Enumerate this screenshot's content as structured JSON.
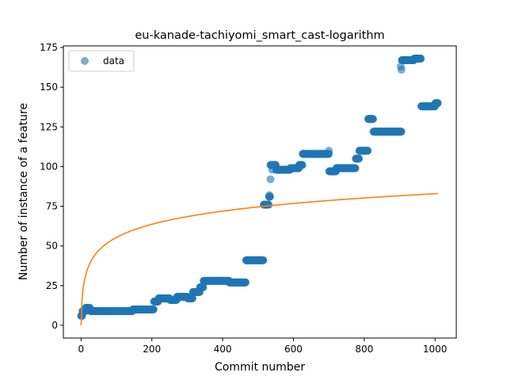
{
  "chart_data": {
    "type": "scatter",
    "title": "eu-kanade-tachiyomi_smart_cast-logarithm",
    "xlabel": "Commit number",
    "ylabel": "Number of instance of a feature",
    "xlim": [
      -50,
      1060
    ],
    "ylim": [
      -8,
      176
    ],
    "xticks": [
      0,
      200,
      400,
      600,
      800,
      1000
    ],
    "yticks": [
      0,
      25,
      50,
      75,
      100,
      125,
      150,
      175
    ],
    "legend": {
      "placement": "top-left",
      "entries": [
        "data"
      ]
    },
    "grid": false,
    "colors": {
      "data": "#1f77b4",
      "fit": "#ff7f0e"
    },
    "data_segments": [
      {
        "x_start": 0,
        "x_end": 3,
        "y": 6
      },
      {
        "x_start": 4,
        "x_end": 12,
        "y": 9
      },
      {
        "x_start": 13,
        "x_end": 25,
        "y": 11
      },
      {
        "x_start": 26,
        "x_end": 145,
        "y": 9
      },
      {
        "x_start": 146,
        "x_end": 205,
        "y": 10
      },
      {
        "x_start": 206,
        "x_end": 218,
        "y": 15
      },
      {
        "x_start": 219,
        "x_end": 250,
        "y": 17
      },
      {
        "x_start": 251,
        "x_end": 270,
        "y": 16
      },
      {
        "x_start": 271,
        "x_end": 300,
        "y": 18
      },
      {
        "x_start": 301,
        "x_end": 315,
        "y": 17
      },
      {
        "x_start": 316,
        "x_end": 335,
        "y": 21
      },
      {
        "x_start": 336,
        "x_end": 345,
        "y": 24
      },
      {
        "x_start": 346,
        "x_end": 400,
        "y": 28
      },
      {
        "x_start": 401,
        "x_end": 418,
        "y": 28
      },
      {
        "x_start": 419,
        "x_end": 465,
        "y": 27
      },
      {
        "x_start": 466,
        "x_end": 515,
        "y": 41
      },
      {
        "x_start": 516,
        "x_end": 530,
        "y": 76
      },
      {
        "x_start": 531,
        "x_end": 534,
        "y": 81
      },
      {
        "x_start": 535,
        "x_end": 550,
        "y": 101
      },
      {
        "x_start": 551,
        "x_end": 590,
        "y": 98
      },
      {
        "x_start": 591,
        "x_end": 615,
        "y": 99
      },
      {
        "x_start": 616,
        "x_end": 625,
        "y": 101
      },
      {
        "x_start": 626,
        "x_end": 700,
        "y": 108
      },
      {
        "x_start": 701,
        "x_end": 720,
        "y": 97
      },
      {
        "x_start": 721,
        "x_end": 775,
        "y": 99
      },
      {
        "x_start": 776,
        "x_end": 785,
        "y": 105
      },
      {
        "x_start": 786,
        "x_end": 810,
        "y": 110
      },
      {
        "x_start": 811,
        "x_end": 825,
        "y": 130
      },
      {
        "x_start": 826,
        "x_end": 905,
        "y": 122
      },
      {
        "x_start": 906,
        "x_end": 940,
        "y": 167
      },
      {
        "x_start": 941,
        "x_end": 960,
        "y": 168
      },
      {
        "x_start": 961,
        "x_end": 1000,
        "y": 138
      },
      {
        "x_start": 1001,
        "x_end": 1008,
        "y": 140
      }
    ],
    "outlier_points": [
      {
        "x": 535,
        "y": 92
      },
      {
        "x": 540,
        "y": 98
      },
      {
        "x": 532,
        "y": 82
      },
      {
        "x": 905,
        "y": 161
      },
      {
        "x": 903,
        "y": 163
      },
      {
        "x": 700,
        "y": 110
      }
    ],
    "fit": {
      "x_range": [
        0,
        1008
      ]
    }
  }
}
